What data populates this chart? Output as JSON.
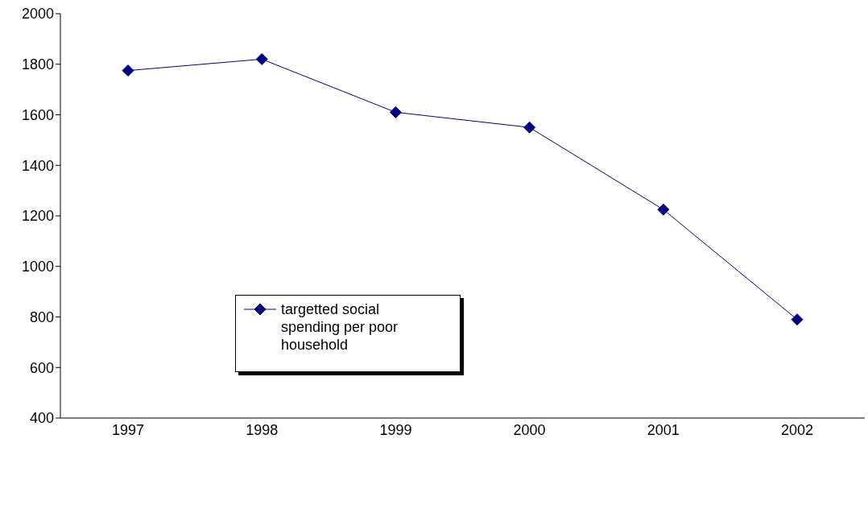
{
  "chart_data": {
    "type": "line",
    "categories": [
      "1997",
      "1998",
      "1999",
      "2000",
      "2001",
      "2002"
    ],
    "series": [
      {
        "name": "targetted social spending per poor household",
        "color": "#000080",
        "values": [
          1775,
          1820,
          1610,
          1550,
          1225,
          790
        ]
      }
    ],
    "ylim": [
      400,
      2000
    ],
    "yticks": [
      400,
      600,
      800,
      1000,
      1200,
      1400,
      1600,
      1800,
      2000
    ],
    "grid": false,
    "legend": "left",
    "marker": "diamond",
    "line_style": "solid"
  }
}
